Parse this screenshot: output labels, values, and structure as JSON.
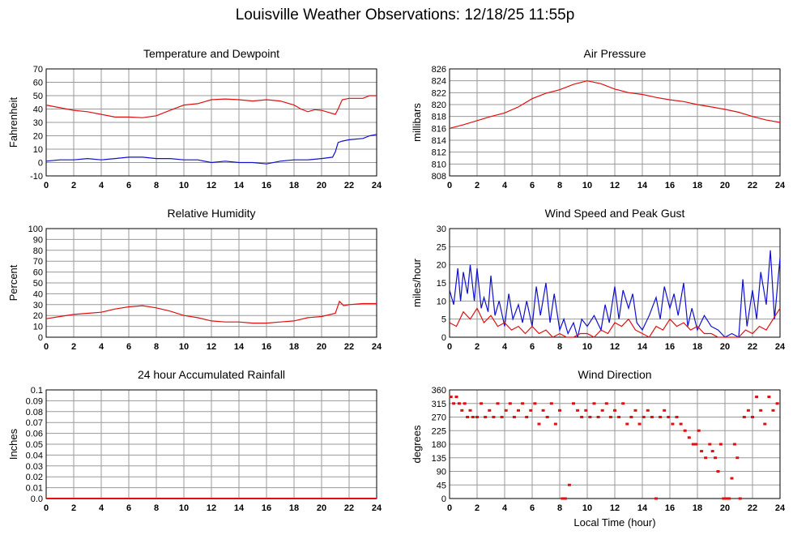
{
  "page": {
    "title": "Louisville Weather Observations: 12/18/25 11:55p"
  },
  "colors": {
    "primary_series": "#e01010",
    "secondary_series": "#1010d0",
    "grid": "#999999",
    "frame": "#000000"
  },
  "chart_data": [
    {
      "id": "temp",
      "type": "line",
      "title": "Temperature and Dewpoint",
      "xlabel": "",
      "ylabel": "Fahrenheit",
      "xlim": [
        0,
        24
      ],
      "ylim": [
        -10,
        70
      ],
      "xticks": [
        "0",
        "2",
        "4",
        "6",
        "8",
        "10",
        "12",
        "14",
        "16",
        "18",
        "20",
        "22",
        "24"
      ],
      "yticks": [
        "-10",
        "0",
        "10",
        "20",
        "30",
        "40",
        "50",
        "60",
        "70"
      ],
      "grid": true,
      "series": [
        {
          "color": "#e01010",
          "x": [
            0,
            1,
            2,
            3,
            4,
            5,
            6,
            7,
            8,
            9,
            10,
            11,
            12,
            13,
            14,
            15,
            16,
            17,
            18,
            18.5,
            19,
            19.5,
            20,
            20.5,
            21,
            21.2,
            21.5,
            22,
            23,
            23.5,
            24
          ],
          "y": [
            43,
            41,
            39,
            38,
            36,
            34,
            34,
            33.5,
            35,
            39,
            43,
            44,
            47,
            47.5,
            47,
            46,
            47,
            46,
            43,
            40,
            38,
            39.5,
            39,
            37.5,
            36,
            40,
            47,
            48,
            48,
            50,
            50
          ]
        },
        {
          "color": "#1010d0",
          "x": [
            0,
            1,
            2,
            3,
            4,
            5,
            6,
            7,
            8,
            9,
            10,
            11,
            12,
            13,
            14,
            15,
            16,
            17,
            18,
            19,
            20,
            20.8,
            21,
            21.2,
            21.5,
            22,
            23,
            23.5,
            24
          ],
          "y": [
            1,
            2,
            2,
            3,
            2,
            3,
            4,
            4,
            3,
            3,
            2,
            2,
            0,
            1,
            0,
            0,
            -1,
            1,
            2,
            2,
            3,
            4,
            8,
            15,
            16,
            17,
            18,
            20,
            21
          ]
        }
      ]
    },
    {
      "id": "pressure",
      "type": "line",
      "title": "Air Pressure",
      "xlabel": "",
      "ylabel": "millibars",
      "xlim": [
        0,
        24
      ],
      "ylim": [
        808,
        826
      ],
      "xticks": [
        "0",
        "2",
        "4",
        "6",
        "8",
        "10",
        "12",
        "14",
        "16",
        "18",
        "20",
        "22",
        "24"
      ],
      "yticks": [
        "808",
        "810",
        "812",
        "814",
        "816",
        "818",
        "820",
        "822",
        "824",
        "826"
      ],
      "grid": true,
      "series": [
        {
          "color": "#e01010",
          "x": [
            0,
            1,
            2,
            3,
            4,
            5,
            6,
            7,
            8,
            9,
            10,
            11,
            12,
            13,
            14,
            15,
            16,
            17,
            18,
            19,
            20,
            21,
            22,
            23,
            24
          ],
          "y": [
            816,
            816.6,
            817.3,
            818,
            818.6,
            819.6,
            821,
            821.9,
            822.5,
            823.4,
            824,
            823.5,
            822.6,
            822,
            821.7,
            821.2,
            820.8,
            820.5,
            820,
            819.6,
            819.2,
            818.7,
            818,
            817.4,
            817
          ]
        }
      ]
    },
    {
      "id": "humidity",
      "type": "line",
      "title": "Relative Humidity",
      "xlabel": "",
      "ylabel": "Percent",
      "xlim": [
        0,
        24
      ],
      "ylim": [
        0,
        100
      ],
      "xticks": [
        "0",
        "2",
        "4",
        "6",
        "8",
        "10",
        "12",
        "14",
        "16",
        "18",
        "20",
        "22",
        "24"
      ],
      "yticks": [
        "0",
        "10",
        "20",
        "30",
        "40",
        "50",
        "60",
        "70",
        "80",
        "90",
        "100"
      ],
      "grid": true,
      "series": [
        {
          "color": "#e01010",
          "x": [
            0,
            1,
            2,
            3,
            4,
            5,
            6,
            7,
            8,
            9,
            10,
            11,
            12,
            13,
            14,
            15,
            16,
            17,
            18,
            19,
            20,
            21,
            21.3,
            21.6,
            22,
            23,
            24
          ],
          "y": [
            17,
            19,
            21,
            22,
            23,
            26,
            28,
            29,
            27,
            24,
            20,
            18,
            15,
            14,
            14,
            13,
            13,
            14,
            15,
            18,
            19,
            22,
            33,
            29,
            30,
            31,
            31
          ]
        }
      ]
    },
    {
      "id": "wind",
      "type": "line",
      "title": "Wind Speed and Peak Gust",
      "xlabel": "",
      "ylabel": "miles/hour",
      "xlim": [
        0,
        24
      ],
      "ylim": [
        0,
        30
      ],
      "xticks": [
        "0",
        "2",
        "4",
        "6",
        "8",
        "10",
        "12",
        "14",
        "16",
        "18",
        "20",
        "22",
        "24"
      ],
      "yticks": [
        "0",
        "5",
        "10",
        "15",
        "20",
        "25",
        "30"
      ],
      "grid": true,
      "series": [
        {
          "color": "#1010d0",
          "x": [
            0,
            0.3,
            0.6,
            0.8,
            1,
            1.3,
            1.5,
            1.8,
            2,
            2.3,
            2.5,
            2.8,
            3,
            3.3,
            3.6,
            4,
            4.3,
            4.6,
            5,
            5.3,
            5.6,
            6,
            6.3,
            6.6,
            7,
            7.3,
            7.6,
            8,
            8.3,
            8.6,
            9,
            9.3,
            9.6,
            10,
            10.5,
            11,
            11.3,
            11.6,
            12,
            12.3,
            12.6,
            13,
            13.3,
            13.6,
            14,
            14.5,
            15,
            15.3,
            15.6,
            16,
            16.3,
            16.6,
            17,
            17.3,
            17.6,
            18,
            18.5,
            19,
            19.5,
            20,
            20.5,
            21,
            21.3,
            21.6,
            22,
            22.3,
            22.6,
            23,
            23.3,
            23.6,
            24
          ],
          "y": [
            13,
            9,
            19,
            10,
            18,
            12,
            20,
            10,
            19,
            8,
            11,
            7,
            17,
            6,
            10,
            3,
            12,
            5,
            9,
            4,
            10,
            3,
            14,
            6,
            15,
            4,
            12,
            2,
            5,
            1,
            4,
            0,
            5,
            3,
            6,
            2,
            9,
            4,
            14,
            5,
            13,
            8,
            12,
            4,
            2,
            6,
            11,
            5,
            14,
            8,
            12,
            6,
            15,
            3,
            8,
            2,
            6,
            3,
            2,
            0,
            1,
            0,
            16,
            3,
            13,
            5,
            18,
            9,
            24,
            5,
            22
          ]
        },
        {
          "color": "#e01010",
          "x": [
            0,
            0.5,
            1,
            1.5,
            2,
            2.5,
            3,
            3.5,
            4,
            4.5,
            5,
            5.5,
            6,
            6.5,
            7,
            7.5,
            8,
            8.5,
            9,
            9.5,
            10,
            10.5,
            11,
            11.5,
            12,
            12.5,
            13,
            13.5,
            14,
            14.5,
            15,
            15.5,
            16,
            16.5,
            17,
            17.5,
            18,
            18.5,
            19,
            19.5,
            20,
            20.5,
            21,
            21.5,
            22,
            22.5,
            23,
            23.5,
            24
          ],
          "y": [
            4,
            3,
            7,
            5,
            8,
            4,
            6,
            3,
            4,
            2,
            3,
            1,
            3,
            1,
            2,
            0,
            1,
            0,
            0,
            1,
            1,
            0,
            2,
            1,
            4,
            3,
            5,
            2,
            1,
            0,
            3,
            2,
            5,
            3,
            4,
            2,
            3,
            1,
            1,
            0,
            0,
            0,
            0,
            2,
            1,
            3,
            2,
            5,
            8
          ]
        }
      ]
    },
    {
      "id": "rain",
      "type": "line",
      "title": "24 hour Accumulated Rainfall",
      "xlabel": "",
      "ylabel": "Inches",
      "xlim": [
        0,
        24
      ],
      "ylim": [
        0,
        0.1
      ],
      "xticks": [
        "0",
        "2",
        "4",
        "6",
        "8",
        "10",
        "12",
        "14",
        "16",
        "18",
        "20",
        "22",
        "24"
      ],
      "yticks": [
        "0.0",
        "0.01",
        "0.02",
        "0.03",
        "0.04",
        "0.05",
        "0.06",
        "0.07",
        "0.08",
        "0.09",
        "0.1"
      ],
      "grid": true,
      "series": [
        {
          "color": "#e01010",
          "x": [
            0,
            24
          ],
          "y": [
            0,
            0
          ]
        }
      ]
    },
    {
      "id": "direction",
      "type": "scatter",
      "title": "Wind Direction",
      "xlabel": "Local Time (hour)",
      "ylabel": "degrees",
      "xlim": [
        0,
        24
      ],
      "ylim": [
        0,
        360
      ],
      "xticks": [
        "0",
        "2",
        "4",
        "6",
        "8",
        "10",
        "12",
        "14",
        "16",
        "18",
        "20",
        "22",
        "24"
      ],
      "yticks": [
        "0",
        "45",
        "90",
        "135",
        "180",
        "225",
        "270",
        "315",
        "360"
      ],
      "grid": true,
      "series": [
        {
          "color": "#e01010",
          "x": [
            0.1,
            0.3,
            0.5,
            0.7,
            0.9,
            1.1,
            1.3,
            1.5,
            1.7,
            2,
            2.3,
            2.6,
            2.9,
            3.2,
            3.5,
            3.8,
            4.1,
            4.4,
            4.7,
            5,
            5.3,
            5.6,
            5.9,
            6.2,
            6.5,
            6.8,
            7.1,
            7.4,
            7.7,
            8,
            8.2,
            8.4,
            8.7,
            9,
            9.3,
            9.6,
            9.9,
            10.2,
            10.5,
            10.8,
            11.1,
            11.4,
            11.7,
            12,
            12.3,
            12.6,
            12.9,
            13.2,
            13.5,
            13.8,
            14.1,
            14.4,
            14.7,
            15,
            15.3,
            15.6,
            15.9,
            16.2,
            16.5,
            16.8,
            17.1,
            17.4,
            17.7,
            17.9,
            18.1,
            18.3,
            18.6,
            18.9,
            19.1,
            19.3,
            19.5,
            19.7,
            19.9,
            20.1,
            20.3,
            20.5,
            20.7,
            20.9,
            21.1,
            21.4,
            21.7,
            22,
            22.3,
            22.6,
            22.9,
            23.2,
            23.5,
            23.8
          ],
          "y": [
            337,
            315,
            337,
            315,
            292,
            315,
            270,
            292,
            270,
            270,
            315,
            270,
            292,
            270,
            315,
            270,
            292,
            315,
            270,
            292,
            315,
            270,
            292,
            315,
            247,
            292,
            270,
            315,
            247,
            292,
            0,
            0,
            45,
            315,
            292,
            270,
            292,
            270,
            315,
            270,
            292,
            315,
            270,
            292,
            270,
            315,
            247,
            270,
            292,
            247,
            270,
            292,
            270,
            0,
            270,
            292,
            270,
            247,
            270,
            247,
            225,
            202,
            180,
            180,
            225,
            157,
            135,
            180,
            157,
            135,
            90,
            180,
            0,
            0,
            0,
            67,
            180,
            135,
            0,
            270,
            292,
            270,
            337,
            292,
            247,
            337,
            292,
            315
          ]
        }
      ]
    }
  ]
}
